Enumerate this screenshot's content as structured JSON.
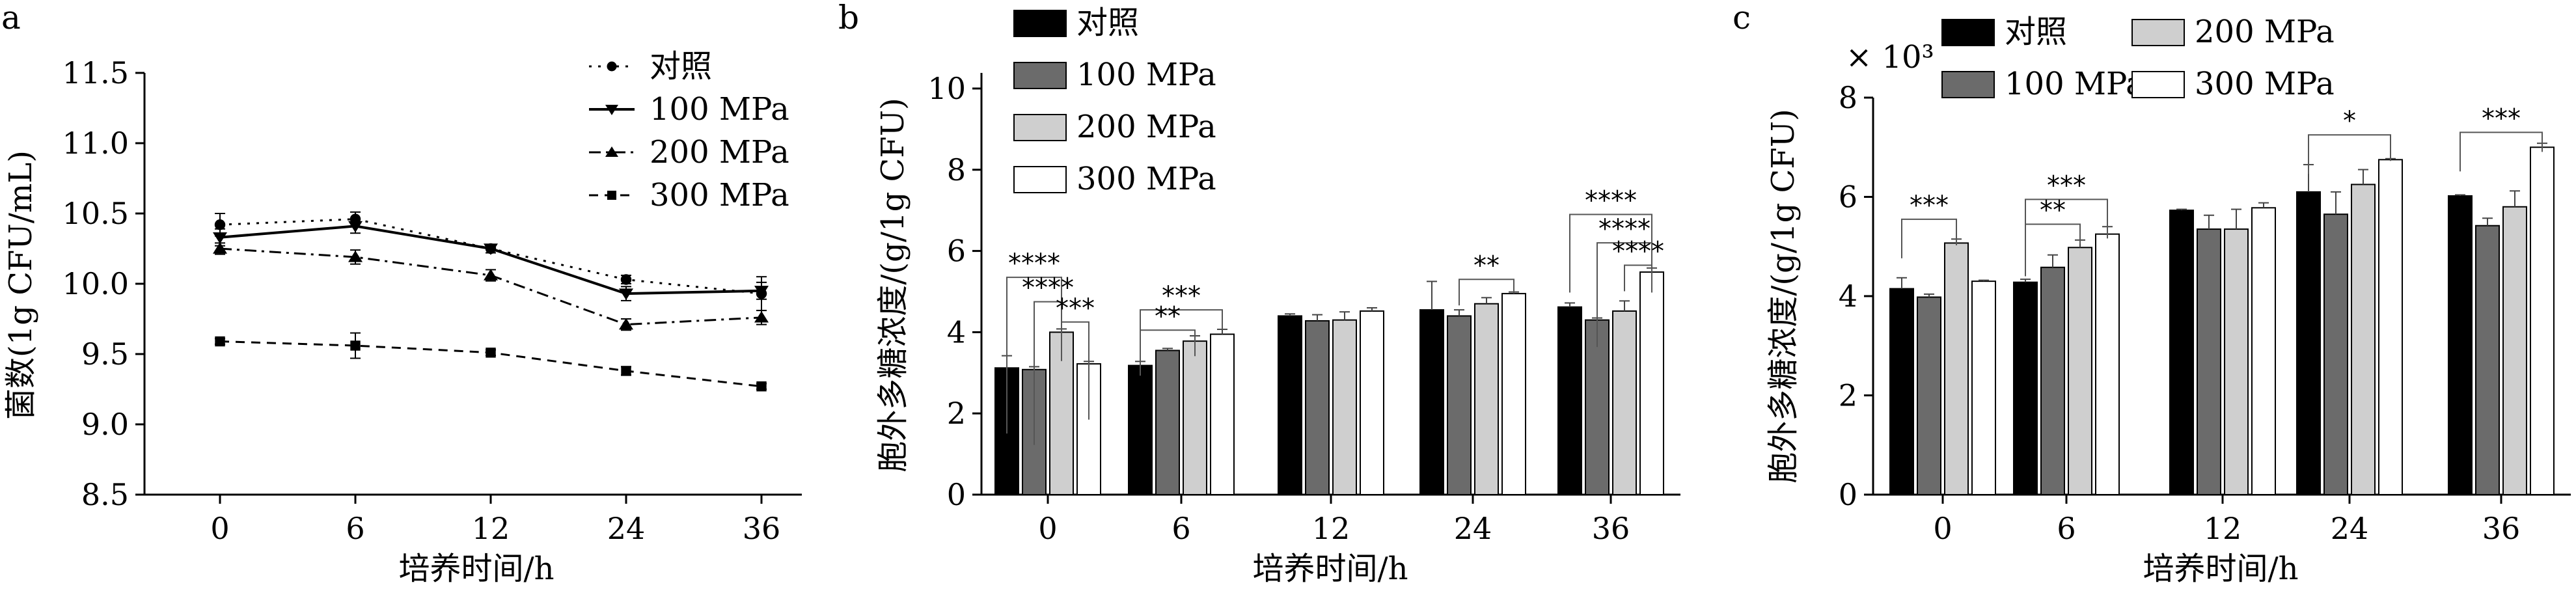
{
  "colors": {
    "ink": "#000000",
    "fill_control": "#000000",
    "fill_100": "#6b6b6b",
    "fill_200": "#cfcfcf",
    "fill_300": "#ffffff"
  },
  "chart_data": [
    {
      "panel": "a",
      "type": "line",
      "xlabel": "培养时间/h",
      "ylabel": "菌数(1g CFU/mL)",
      "categories": [
        "0",
        "6",
        "12",
        "24",
        "36"
      ],
      "ylim": [
        8.5,
        11.5
      ],
      "yticks": [
        "8.5",
        "9.0",
        "9.5",
        "10.0",
        "10.5",
        "11.0",
        "11.5"
      ],
      "series": [
        {
          "name": "对照",
          "values": [
            10.42,
            10.46,
            10.25,
            10.03,
            9.93
          ],
          "err": [
            0.08,
            0.05,
            0.03,
            0.03,
            0.12
          ],
          "style": "dotted",
          "marker": "circle"
        },
        {
          "name": "100 MPa",
          "values": [
            10.33,
            10.41,
            10.25,
            9.93,
            9.95
          ],
          "err": [
            0.06,
            0.05,
            0.03,
            0.05,
            0.06
          ],
          "style": "solid",
          "marker": "triangle-down"
        },
        {
          "name": "200 MPa",
          "values": [
            10.25,
            10.19,
            10.06,
            9.71,
            9.76
          ],
          "err": [
            0.04,
            0.05,
            0.04,
            0.04,
            0.05
          ],
          "style": "dashdot",
          "marker": "triangle-up"
        },
        {
          "name": "300 MPa",
          "values": [
            9.59,
            9.56,
            9.51,
            9.38,
            9.27
          ],
          "err": [
            0.02,
            0.09,
            0.02,
            0.03,
            0.02
          ],
          "style": "dashed",
          "marker": "square"
        }
      ]
    },
    {
      "panel": "b",
      "type": "bar",
      "xlabel": "培养时间/h",
      "ylabel": "胞外多糖浓度/(g/1g CFU)",
      "categories": [
        "0",
        "6",
        "12",
        "24",
        "36"
      ],
      "ylim": [
        0,
        10
      ],
      "yticks": [
        "0",
        "2",
        "4",
        "6",
        "8",
        "10"
      ],
      "series": [
        {
          "name": "对照",
          "values": [
            3.12,
            3.18,
            4.4,
            4.55,
            4.62
          ],
          "err": [
            0.3,
            0.1,
            0.05,
            0.7,
            0.1
          ]
        },
        {
          "name": "100 MPa",
          "values": [
            3.08,
            3.55,
            4.28,
            4.4,
            4.3
          ],
          "err": [
            0.07,
            0.05,
            0.15,
            0.15,
            0.05
          ]
        },
        {
          "name": "200 MPa",
          "values": [
            4.0,
            3.78,
            4.3,
            4.7,
            4.52
          ],
          "err": [
            0.08,
            0.13,
            0.2,
            0.15,
            0.25
          ]
        },
        {
          "name": "300 MPa",
          "values": [
            3.22,
            3.95,
            4.52,
            4.95,
            5.48
          ],
          "err": [
            0.06,
            0.12,
            0.08,
            0.04,
            0.1
          ]
        }
      ],
      "annotations": [
        {
          "group": "0",
          "stars": [
            "****",
            "****",
            "***"
          ]
        },
        {
          "group": "6",
          "stars": [
            "***",
            "**"
          ]
        },
        {
          "group": "24",
          "stars": [
            "**"
          ]
        },
        {
          "group": "36",
          "stars": [
            "****",
            "****",
            "****"
          ]
        }
      ]
    },
    {
      "panel": "c",
      "type": "bar",
      "xlabel": "培养时间/h",
      "ylabel": "胞外多糖浓度/(g/1g CFU)",
      "yscale_label": "× 10³",
      "categories": [
        "0",
        "6",
        "12",
        "24",
        "36"
      ],
      "ylim": [
        0,
        8
      ],
      "yticks": [
        "0",
        "2",
        "4",
        "6",
        "8"
      ],
      "series": [
        {
          "name": "对照",
          "values": [
            4.15,
            4.28,
            5.73,
            6.1,
            6.02
          ],
          "err": [
            0.22,
            0.06,
            0.02,
            0.55,
            0.02
          ]
        },
        {
          "name": "100 MPa",
          "values": [
            3.98,
            4.58,
            5.35,
            5.65,
            5.42
          ],
          "err": [
            0.06,
            0.25,
            0.28,
            0.45,
            0.15
          ]
        },
        {
          "name": "200 MPa",
          "values": [
            5.07,
            4.98,
            5.35,
            6.25,
            5.8
          ],
          "err": [
            0.08,
            0.15,
            0.4,
            0.3,
            0.32
          ]
        },
        {
          "name": "300 MPa",
          "values": [
            4.3,
            5.25,
            5.78,
            6.75,
            7.0
          ],
          "err": [
            0.02,
            0.15,
            0.1,
            0.02,
            0.08
          ]
        }
      ],
      "annotations": [
        {
          "group": "0",
          "stars": [
            "***"
          ]
        },
        {
          "group": "6",
          "stars": [
            "***",
            "**"
          ]
        },
        {
          "group": "24",
          "stars": [
            "*"
          ]
        },
        {
          "group": "36",
          "stars": [
            "***"
          ]
        }
      ]
    }
  ]
}
